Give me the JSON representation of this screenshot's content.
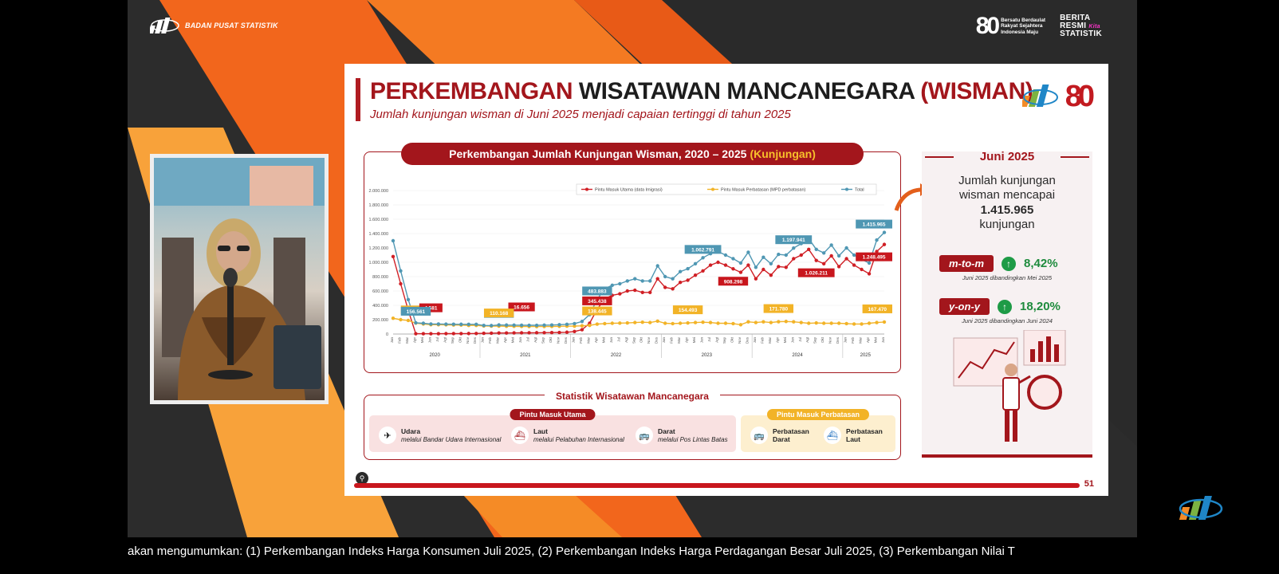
{
  "broadcast": {
    "org_name": "BADAN PUSAT STATISTIK",
    "logo_80_text": "80",
    "logo_80_tagline": [
      "Bersatu Berdaulat",
      "Rakyat Sejahtera",
      "Indonesia Maju"
    ],
    "brs_lines": [
      "BERITA",
      "RESMI",
      "STATISTIK"
    ],
    "brs_kita": "Kita",
    "ticker": "akan mengumumkan: (1) Perkembangan Indeks Harga Konsumen Juli 2025, (2) Perkembangan Indeks Harga Perdagangan Besar Juli 2025, (3) Perkembangan Nilai T"
  },
  "slide": {
    "title_part1": "PERKEMBANGAN",
    "title_part2": " WISATAWAN MANCANEGARA ",
    "title_part3": "(WISMAN)",
    "subtitle": "Jumlah kunjungan wisman di Juni 2025 menjadi capaian tertinggi di tahun 2025",
    "logo_80": "80",
    "page_number": "51",
    "colors": {
      "brand_red": "#a3161c",
      "main_series": "#d01f25",
      "border_series": "#f2b327",
      "total_series": "#4f97b3"
    }
  },
  "chart_data": {
    "type": "line",
    "title": "Perkembangan Jumlah Kunjungan Wisman, 2020 – 2025",
    "title_unit": "(Kunjungan)",
    "ylim": [
      0,
      2000000
    ],
    "y_ticks": [
      "0",
      "200.000",
      "400.000",
      "600.000",
      "800.000",
      "1.000.000",
      "1.200.000",
      "1.400.000",
      "1.600.000",
      "1.800.000",
      "2.000.000"
    ],
    "month_labels": [
      "Jan",
      "Feb",
      "Mar",
      "Apr",
      "Mei",
      "Jun",
      "Jul",
      "Agt",
      "Sep",
      "Okt",
      "Nov",
      "Des"
    ],
    "years": [
      "2020",
      "2021",
      "2022",
      "2023",
      "2024",
      "2025"
    ],
    "legend": [
      "Pintu Masuk Utama (data Imigrasi)",
      "Pintu Masuk Perbatasan (MPD perbatasan)",
      "Total"
    ],
    "series": [
      {
        "name": "Pintu Masuk Utama (data Imigrasi)",
        "color": "#d01f25",
        "values": [
          1080000,
          700000,
          330000,
          5000,
          4500,
          4581,
          5000,
          5500,
          6000,
          6500,
          7000,
          8000,
          10000,
          12000,
          14000,
          15000,
          16000,
          16656,
          17000,
          18000,
          19000,
          20000,
          22000,
          25000,
          35000,
          60000,
          150000,
          345438,
          490000,
          540000,
          560000,
          600000,
          610000,
          580000,
          580000,
          770000,
          650000,
          630000,
          720000,
          750000,
          820000,
          880000,
          960000,
          1000000,
          960000,
          908298,
          860000,
          960000,
          770000,
          900000,
          820000,
          940000,
          930000,
          1050000,
          1100000,
          1180000,
          1026211,
          980000,
          1090000,
          940000,
          1050000,
          960000,
          900000,
          840000,
          1150000,
          1248495
        ]
      },
      {
        "name": "Pintu Masuk Perbatasan (MPD perbatasan)",
        "color": "#f2b327",
        "values": [
          220000,
          200000,
          190000,
          152180,
          140000,
          130000,
          130000,
          128000,
          126000,
          125000,
          120000,
          120000,
          112000,
          110000,
          110168,
          108000,
          107000,
          106000,
          105000,
          104000,
          105000,
          106000,
          108000,
          110000,
          110000,
          115000,
          120000,
          138445,
          145000,
          150000,
          152000,
          155000,
          160000,
          165000,
          160000,
          180000,
          150000,
          145000,
          150000,
          154493,
          160000,
          165000,
          160000,
          150000,
          150000,
          145000,
          130000,
          170000,
          160000,
          170000,
          160000,
          171780,
          175000,
          170000,
          160000,
          150000,
          155000,
          150000,
          150000,
          150000,
          145000,
          140000,
          140000,
          150000,
          160000,
          167470
        ]
      },
      {
        "name": "Total",
        "color": "#4f97b3",
        "values": [
          1300000,
          880000,
          480000,
          156561,
          150000,
          140000,
          140000,
          138000,
          137000,
          136000,
          135000,
          135000,
          120000,
          118000,
          126844,
          125000,
          124000,
          123000,
          122000,
          122000,
          124000,
          126000,
          130000,
          135000,
          145000,
          175000,
          270000,
          483883,
          630000,
          680000,
          700000,
          740000,
          770000,
          740000,
          740000,
          950000,
          800000,
          770000,
          870000,
          910000,
          980000,
          1062791,
          1120000,
          1150000,
          1100000,
          1050000,
          990000,
          1140000,
          930000,
          1070000,
          980000,
          1110000,
          1100000,
          1197941,
          1260000,
          1330000,
          1180000,
          1130000,
          1240000,
          1090000,
          1200000,
          1100000,
          1040000,
          990000,
          1310000,
          1415965
        ]
      }
    ],
    "annotations": [
      {
        "label": "152.180",
        "series": 1,
        "index": 3
      },
      {
        "label": "4.581",
        "series": 0,
        "index": 5
      },
      {
        "label": "156.561",
        "series": 2,
        "index": 3
      },
      {
        "label": "16.656",
        "series": 0,
        "index": 17
      },
      {
        "label": "126.844",
        "series": 2,
        "index": 14
      },
      {
        "label": "110.168",
        "series": 1,
        "index": 14
      },
      {
        "label": "345.438",
        "series": 0,
        "index": 27
      },
      {
        "label": "483.883",
        "series": 2,
        "index": 27
      },
      {
        "label": "138.445",
        "series": 1,
        "index": 27
      },
      {
        "label": "1.062.791",
        "series": 2,
        "index": 41
      },
      {
        "label": "908.298",
        "series": 0,
        "index": 45
      },
      {
        "label": "154.493",
        "series": 1,
        "index": 39
      },
      {
        "label": "1.197.941",
        "series": 2,
        "index": 53
      },
      {
        "label": "1.026.211",
        "series": 0,
        "index": 56
      },
      {
        "label": "171.780",
        "series": 1,
        "index": 51
      },
      {
        "label": "1.415.965",
        "series": 2,
        "index": 65
      },
      {
        "label": "1.248.495",
        "series": 0,
        "index": 65
      },
      {
        "label": "167.470",
        "series": 1,
        "index": 65
      }
    ]
  },
  "juni": {
    "title": "Juni 2025",
    "desc_line1": "Jumlah kunjungan",
    "desc_line2": "wisman mencapai",
    "desc_value": "1.415.965",
    "desc_line4": "kunjungan",
    "mtm_label": "m-to-m",
    "mtm_value": "8,42%",
    "mtm_note": "Juni 2025 dibandingkan Mei 2025",
    "yoy_label": "y-on-y",
    "yoy_value": "18,20%",
    "yoy_note": "Juni 2025 dibandingkan Juni 2024"
  },
  "stats": {
    "title": "Statistik Wisatawan Mancanegara",
    "utama_pill": "Pintu Masuk Utama",
    "batas_pill": "Pintu Masuk Perbatasan",
    "modes": [
      {
        "title": "Udara",
        "sub": "melalui Bandar Udara Internasional",
        "icon": "airplane-icon"
      },
      {
        "title": "Laut",
        "sub": "melalui Pelabuhan Internasional",
        "icon": "ship-icon"
      },
      {
        "title": "Darat",
        "sub": "melalui Pos Lintas Batas",
        "icon": "bus-icon"
      }
    ],
    "border_modes": [
      {
        "title1": "Perbatasan",
        "title2": "Darat",
        "icon": "bus-icon"
      },
      {
        "title1": "Perbatasan",
        "title2": "Laut",
        "icon": "ship-icon"
      }
    ]
  }
}
